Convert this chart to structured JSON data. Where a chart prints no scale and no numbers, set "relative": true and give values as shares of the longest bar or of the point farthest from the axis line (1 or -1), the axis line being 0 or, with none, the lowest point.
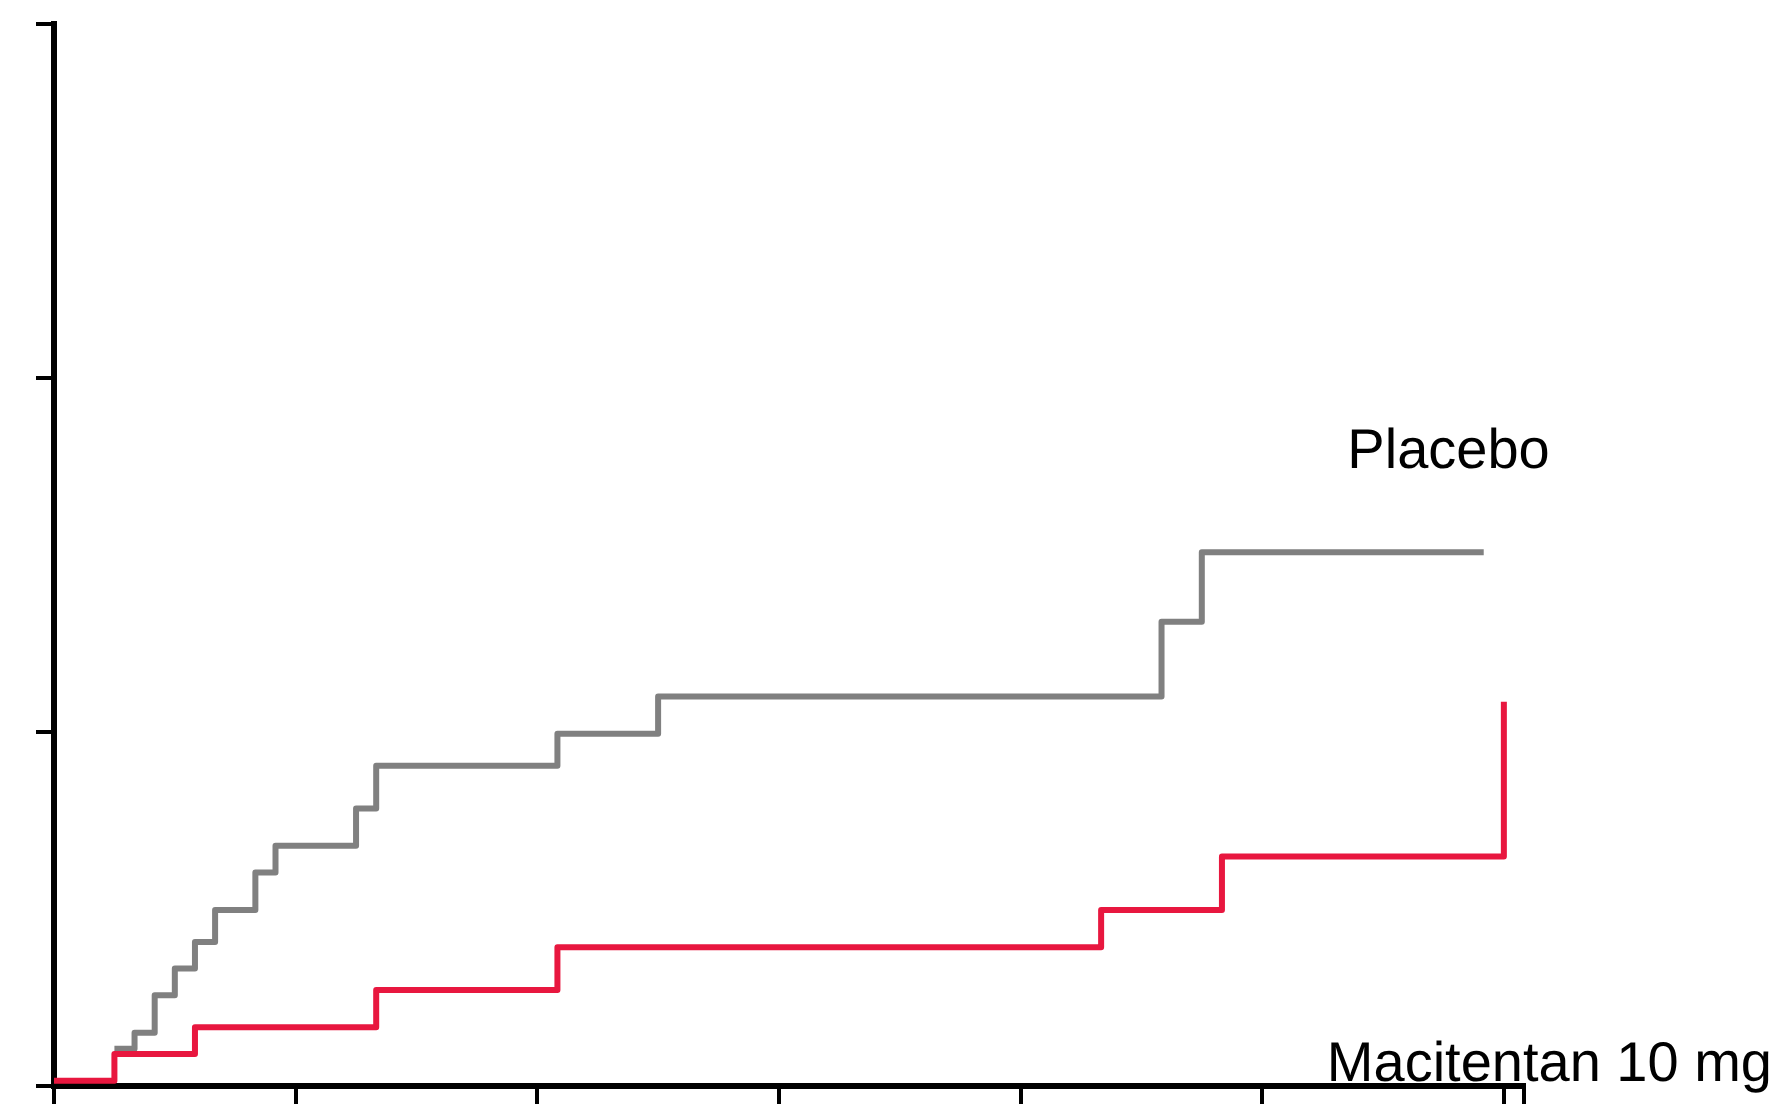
{
  "chart_data": {
    "type": "step",
    "relative": true,
    "legend": false,
    "grid": false,
    "tick_labels": false,
    "categories": [
      null,
      null,
      null,
      null,
      null,
      null,
      null,
      null,
      null,
      null,
      null,
      null,
      null,
      null,
      null,
      null,
      null,
      null,
      null,
      null,
      null,
      null,
      null,
      null,
      null,
      null,
      null,
      null,
      null,
      null,
      null,
      null,
      null,
      null,
      null,
      null,
      null,
      null,
      null,
      null,
      null,
      null,
      null,
      null,
      null,
      null,
      null,
      null,
      null,
      null,
      null,
      null,
      null,
      null,
      null,
      null,
      null,
      null,
      null,
      null,
      null,
      null,
      null,
      null,
      null,
      null,
      null,
      null,
      null,
      null,
      null,
      null,
      null,
      null
    ],
    "series": [
      {
        "name": "Placebo",
        "color": "#808080",
        "values": [
          null,
          null,
          null,
          0.07,
          0.1,
          0.17,
          0.22,
          0.27,
          0.33,
          0.33,
          0.4,
          0.45,
          0.45,
          0.45,
          0.45,
          0.52,
          0.6,
          0.6,
          0.6,
          0.6,
          0.6,
          0.6,
          0.6,
          0.6,
          0.6,
          0.66,
          0.66,
          0.66,
          0.66,
          0.66,
          0.73,
          0.73,
          0.73,
          0.73,
          0.73,
          0.73,
          0.73,
          0.73,
          0.73,
          0.73,
          0.73,
          0.73,
          0.73,
          0.73,
          0.73,
          0.73,
          0.73,
          0.73,
          0.73,
          0.73,
          0.73,
          0.73,
          0.73,
          0.73,
          0.73,
          0.87,
          0.87,
          1.0,
          1.0,
          1.0,
          1.0,
          1.0,
          1.0,
          1.0,
          1.0,
          1.0,
          1.0,
          1.0,
          1.0,
          1.0,
          1.0,
          1.0,
          null,
          null
        ]
      },
      {
        "name": "Macitentan 10 mg",
        "color": "#e8173f",
        "values": [
          0.01,
          0.01,
          0.01,
          0.06,
          0.06,
          0.06,
          0.06,
          0.11,
          0.11,
          0.11,
          0.11,
          0.11,
          0.11,
          0.11,
          0.11,
          0.11,
          0.18,
          0.18,
          0.18,
          0.18,
          0.18,
          0.18,
          0.18,
          0.18,
          0.18,
          0.26,
          0.26,
          0.26,
          0.26,
          0.26,
          0.26,
          0.26,
          0.26,
          0.26,
          0.26,
          0.26,
          0.26,
          0.26,
          0.26,
          0.26,
          0.26,
          0.26,
          0.26,
          0.26,
          0.26,
          0.26,
          0.26,
          0.26,
          0.26,
          0.26,
          0.26,
          0.26,
          0.33,
          0.33,
          0.33,
          0.33,
          0.33,
          0.33,
          0.43,
          0.43,
          0.43,
          0.43,
          0.43,
          0.43,
          0.43,
          0.43,
          0.43,
          0.43,
          0.43,
          0.43,
          0.43,
          0.43,
          0.72,
          null
        ]
      }
    ]
  }
}
